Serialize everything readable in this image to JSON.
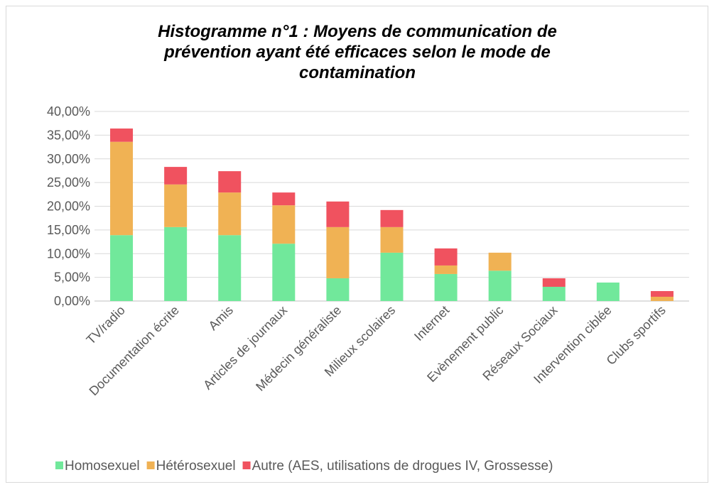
{
  "chart_data": {
    "type": "stacked_bar",
    "title_lines": [
      "Histogramme n°1 : Moyens de communication de",
      "prévention ayant été efficaces selon le mode de",
      "contamination"
    ],
    "categories": [
      "TV/radio",
      "Documentation écrite",
      "Amis",
      "Articles de journaux",
      "Médecin généraliste",
      "Milieux scolaires",
      "Internet",
      "Evènement public",
      "Réseaux Sociaux",
      "Intervention ciblée",
      "Clubs sportifs"
    ],
    "series": [
      {
        "name": "Homosexuel",
        "color": "#71e89b",
        "values": [
          13.9,
          15.6,
          13.9,
          12.1,
          4.8,
          10.2,
          5.7,
          6.4,
          3.0,
          3.9,
          0
        ]
      },
      {
        "name": "Hétérosexuel",
        "color": "#f0b254",
        "values": [
          19.7,
          9.0,
          9.0,
          8.1,
          10.8,
          5.4,
          1.8,
          3.8,
          0,
          0,
          0.9
        ]
      },
      {
        "name": "Autre (AES, utilisations de drogues IV, Grossesse)",
        "color": "#f0525f",
        "values": [
          2.8,
          3.7,
          4.5,
          2.7,
          5.4,
          3.6,
          3.6,
          0,
          1.8,
          0,
          1.2
        ]
      }
    ],
    "ylim": [
      0,
      40
    ],
    "yticks": [
      {
        "value": 0,
        "label": "0,00%"
      },
      {
        "value": 5,
        "label": "5,00%"
      },
      {
        "value": 10,
        "label": "10,00%"
      },
      {
        "value": 15,
        "label": "15,00%"
      },
      {
        "value": 20,
        "label": "20,00%"
      },
      {
        "value": 25,
        "label": "25,00%"
      },
      {
        "value": 30,
        "label": "30,00%"
      },
      {
        "value": 35,
        "label": "35,00%"
      },
      {
        "value": 40,
        "label": "40,00%"
      }
    ],
    "grid": true
  }
}
